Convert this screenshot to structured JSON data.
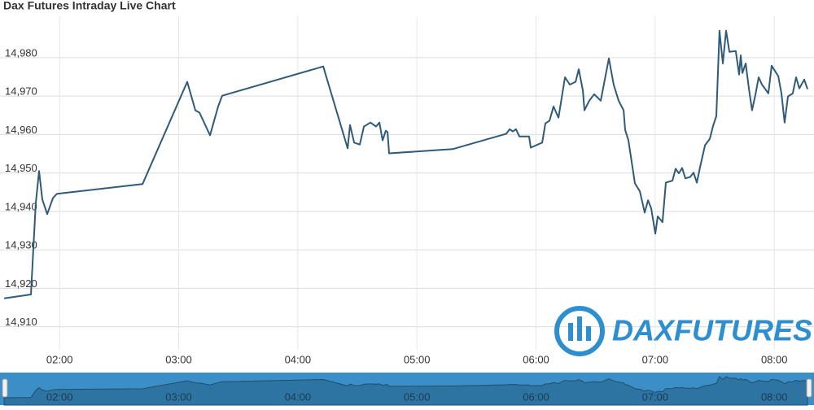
{
  "chart_data": {
    "type": "line",
    "title": "Dax Futures Intraday Live Chart",
    "watermark": "DaxFutures",
    "x": [
      92.1,
      105.6,
      108.0,
      109.7,
      111.3,
      113.8,
      116.7,
      118.7,
      161.8,
      184.3,
      188.4,
      190.5,
      195.8,
      199.9,
      201.9,
      252.8,
      265.1,
      266.3,
      268.4,
      271.2,
      273.3,
      276.6,
      279.4,
      281.1,
      282.7,
      284.3,
      285.2,
      286.0,
      318.0,
      345.0,
      346.7,
      348.3,
      349.9,
      351.6,
      356.5,
      357.3,
      363.1,
      364.7,
      366.8,
      368.8,
      371.3,
      374.6,
      377.0,
      379.9,
      381.5,
      383.6,
      384.4,
      386.8,
      389.3,
      392.6,
      396.7,
      399.1,
      401.6,
      404.1,
      404.9,
      406.5,
      409.8,
      412.3,
      414.7,
      416.4,
      418.0,
      420.1,
      421.3,
      423.7,
      425.4,
      428.7,
      430.3,
      431.9,
      433.6,
      435.2,
      437.7,
      439.3,
      441.0,
      442.6,
      445.1,
      447.5,
      449.2,
      450.8,
      452.4,
      454.1,
      455.7,
      457.4,
      460.6,
      462.3,
      463.1,
      463.9,
      465.6,
      467.2,
      468.8,
      470.5,
      472.1,
      473.8,
      477.0,
      478.7,
      482.0,
      483.6,
      485.2,
      486.9,
      489.3,
      491.0,
      492.6,
      495.1,
      496.7
    ],
    "series": [
      {
        "name": "Dax Futures",
        "color": "#2f5b78",
        "values": [
          14917.4,
          14918.4,
          14942.0,
          14950.5,
          14943.1,
          14939.3,
          14943.5,
          14944.6,
          14947.1,
          14973.7,
          14966.3,
          14965.7,
          14959.8,
          14967.3,
          14970.1,
          14977.7,
          14956.4,
          14962.5,
          14957.9,
          14957.4,
          14962.1,
          14963.1,
          14962.1,
          14963.1,
          14958.5,
          14961.0,
          14960.6,
          14955.1,
          14956.2,
          14960.2,
          14961.4,
          14960.8,
          14961.4,
          14959.5,
          14959.5,
          14956.6,
          14957.9,
          14962.9,
          14963.6,
          14967.3,
          14964.4,
          14974.9,
          14973.0,
          14973.7,
          14977.0,
          14971.4,
          14966.3,
          14968.8,
          14970.5,
          14968.8,
          14979.8,
          14973.0,
          14968.8,
          14966.3,
          14961.2,
          14958.5,
          14947.3,
          14945.2,
          14939.7,
          14942.9,
          14940.8,
          14934.2,
          14938.7,
          14937.2,
          14947.5,
          14948.0,
          14951.1,
          14949.9,
          14951.3,
          14948.6,
          14949.0,
          14950.1,
          14947.5,
          14951.5,
          14957.2,
          14958.9,
          14962.3,
          14964.8,
          14987.0,
          14978.5,
          14987.0,
          14981.5,
          14981.7,
          14975.6,
          14980.6,
          14976.0,
          14978.5,
          14972.0,
          14966.3,
          14970.3,
          14974.9,
          14973.0,
          14970.7,
          14977.9,
          14975.2,
          14970.7,
          14963.1,
          14969.9,
          14970.7,
          14974.9,
          14972.0,
          14974.3,
          14971.8
        ]
      }
    ],
    "xlim": [
      90,
      500
    ],
    "xticks": [
      {
        "value": 120,
        "label": "02:00"
      },
      {
        "value": 180,
        "label": "03:00"
      },
      {
        "value": 240,
        "label": "04:00"
      },
      {
        "value": 300,
        "label": "05:00"
      },
      {
        "value": 360,
        "label": "06:00"
      },
      {
        "value": 420,
        "label": "07:00"
      },
      {
        "value": 480,
        "label": "08:00"
      }
    ],
    "ylim": [
      14904,
      14995
    ],
    "yticks": [
      {
        "value": 14910,
        "label": "14,910"
      },
      {
        "value": 14920,
        "label": "14,920"
      },
      {
        "value": 14930,
        "label": "14,930"
      },
      {
        "value": 14940,
        "label": "14,940"
      },
      {
        "value": 14950,
        "label": "14,950"
      },
      {
        "value": 14960,
        "label": "14,960"
      },
      {
        "value": 14970,
        "label": "14,970"
      },
      {
        "value": 14980,
        "label": "14,980"
      }
    ],
    "grid": true
  }
}
